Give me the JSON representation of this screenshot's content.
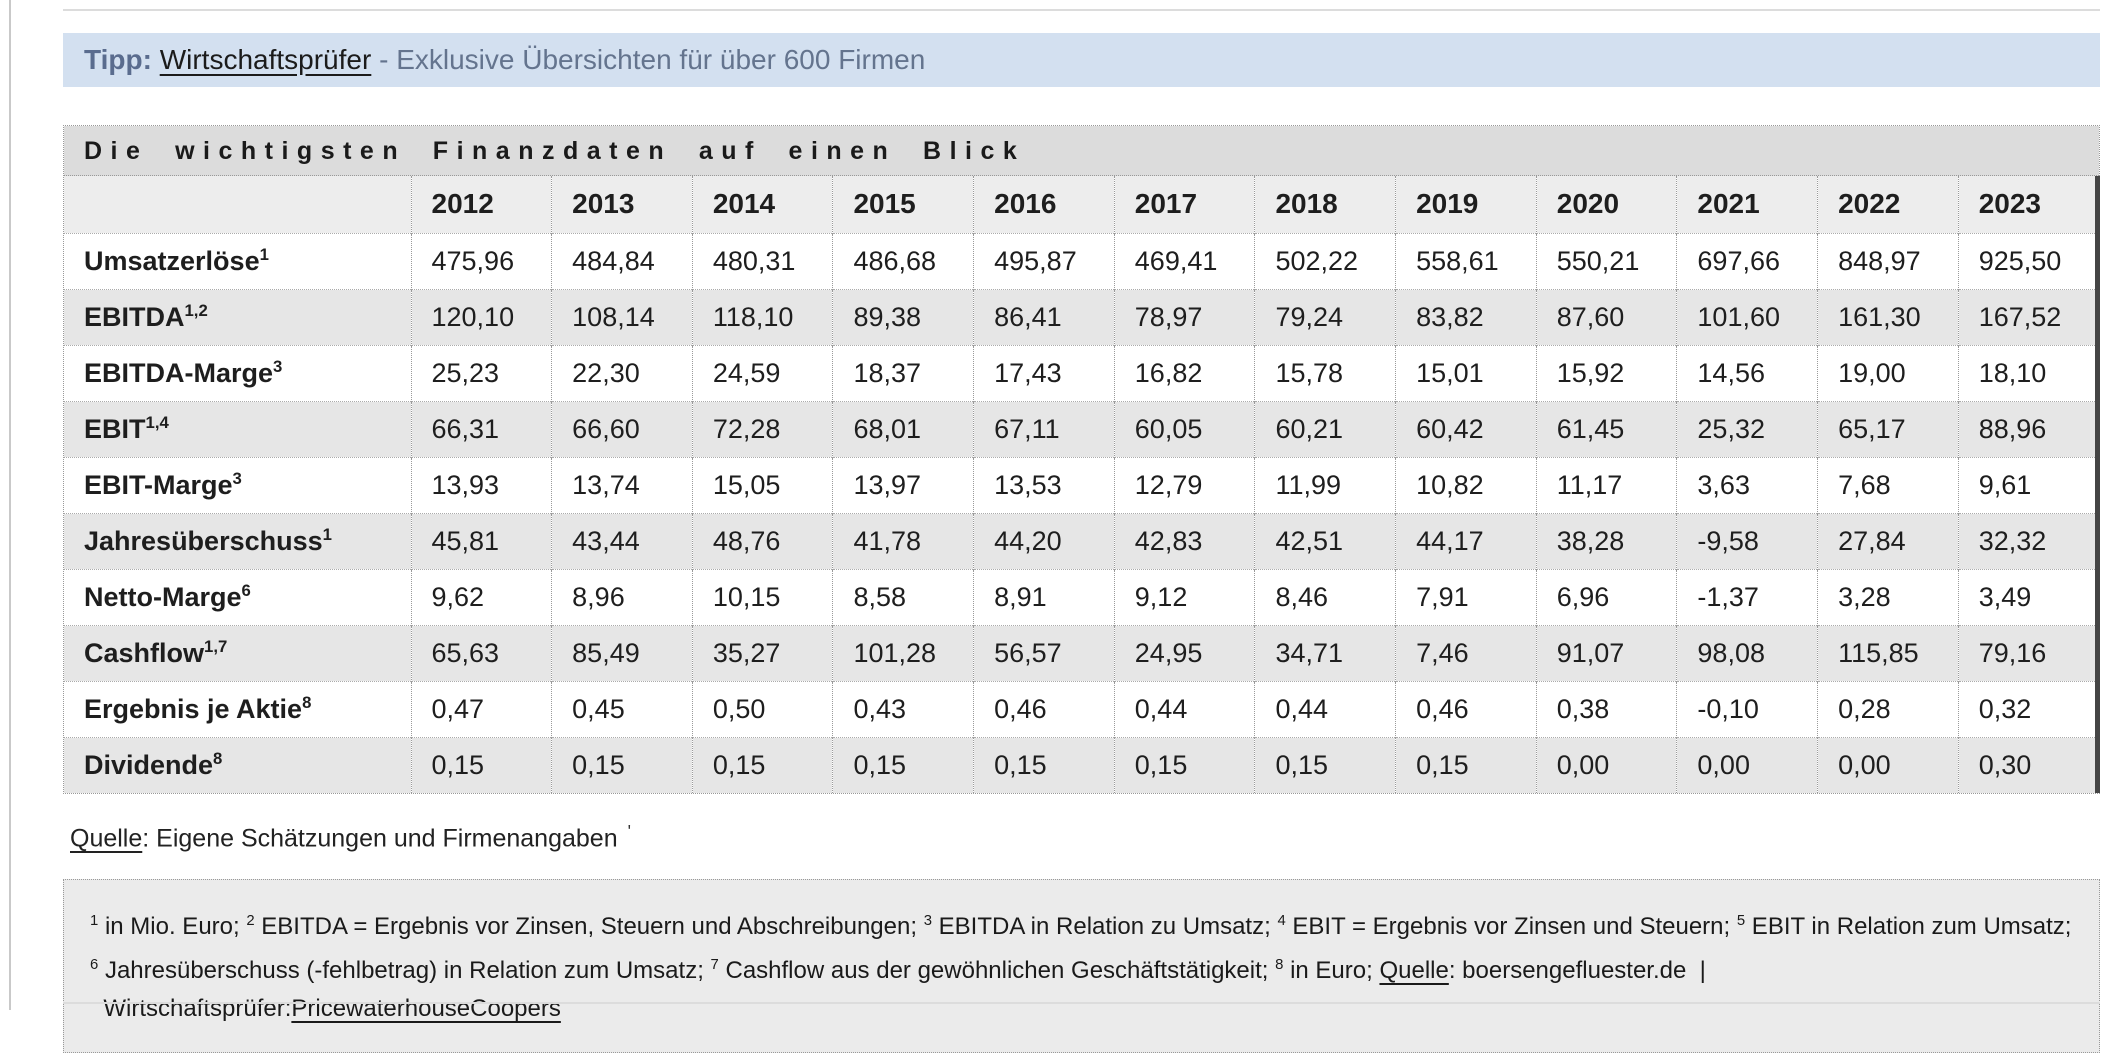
{
  "tip_banner": {
    "label": "Tipp:",
    "link_text": "Wirtschaftsprüfer",
    "suffix": " - Exklusive Übersichten für über 600 Firmen"
  },
  "finanz_table": {
    "title": "Die wichtigsten Finanzdaten auf einen Blick",
    "years": [
      "2012",
      "2013",
      "2014",
      "2015",
      "2016",
      "2017",
      "2018",
      "2019",
      "2020",
      "2021",
      "2022",
      "2023"
    ],
    "rows": [
      {
        "label": "Umsatzerlöse",
        "sup": "1",
        "values": [
          "475,96",
          "484,84",
          "480,31",
          "486,68",
          "495,87",
          "469,41",
          "502,22",
          "558,61",
          "550,21",
          "697,66",
          "848,97",
          "925,50"
        ]
      },
      {
        "label": "EBITDA",
        "sup": "1,2",
        "values": [
          "120,10",
          "108,14",
          "118,10",
          "89,38",
          "86,41",
          "78,97",
          "79,24",
          "83,82",
          "87,60",
          "101,60",
          "161,30",
          "167,52"
        ]
      },
      {
        "label": "EBITDA-Marge",
        "sup": "3",
        "values": [
          "25,23",
          "22,30",
          "24,59",
          "18,37",
          "17,43",
          "16,82",
          "15,78",
          "15,01",
          "15,92",
          "14,56",
          "19,00",
          "18,10"
        ]
      },
      {
        "label": "EBIT",
        "sup": "1,4",
        "values": [
          "66,31",
          "66,60",
          "72,28",
          "68,01",
          "67,11",
          "60,05",
          "60,21",
          "60,42",
          "61,45",
          "25,32",
          "65,17",
          "88,96"
        ]
      },
      {
        "label": "EBIT-Marge",
        "sup": "3",
        "values": [
          "13,93",
          "13,74",
          "15,05",
          "13,97",
          "13,53",
          "12,79",
          "11,99",
          "10,82",
          "11,17",
          "3,63",
          "7,68",
          "9,61"
        ]
      },
      {
        "label": "Jahresüberschuss",
        "sup": "1",
        "values": [
          "45,81",
          "43,44",
          "48,76",
          "41,78",
          "44,20",
          "42,83",
          "42,51",
          "44,17",
          "38,28",
          "-9,58",
          "27,84",
          "32,32"
        ]
      },
      {
        "label": "Netto-Marge",
        "sup": "6",
        "values": [
          "9,62",
          "8,96",
          "10,15",
          "8,58",
          "8,91",
          "9,12",
          "8,46",
          "7,91",
          "6,96",
          "-1,37",
          "3,28",
          "3,49"
        ]
      },
      {
        "label": "Cashflow",
        "sup": "1,7",
        "values": [
          "65,63",
          "85,49",
          "35,27",
          "101,28",
          "56,57",
          "24,95",
          "34,71",
          "7,46",
          "91,07",
          "98,08",
          "115,85",
          "79,16"
        ]
      },
      {
        "label": "Ergebnis je Aktie",
        "sup": "8",
        "values": [
          "0,47",
          "0,45",
          "0,50",
          "0,43",
          "0,46",
          "0,44",
          "0,44",
          "0,46",
          "0,38",
          "-0,10",
          "0,28",
          "0,32"
        ]
      },
      {
        "label": "Dividende",
        "sup": "8",
        "values": [
          "0,15",
          "0,15",
          "0,15",
          "0,15",
          "0,15",
          "0,15",
          "0,15",
          "0,15",
          "0,00",
          "0,00",
          "0,00",
          "0,30"
        ]
      }
    ]
  },
  "source_line": {
    "label": "Quelle",
    "text": ": Eigene Schätzungen und Firmenangaben",
    "mark": "'"
  },
  "footnotes": {
    "segments": [
      {
        "t": "sup",
        "v": "1"
      },
      {
        "t": "text",
        "v": " in Mio. Euro; "
      },
      {
        "t": "sup",
        "v": "2"
      },
      {
        "t": "text",
        "v": " EBITDA = Ergebnis vor Zinsen, Steuern und Abschreibungen; "
      },
      {
        "t": "sup",
        "v": "3"
      },
      {
        "t": "text",
        "v": " EBITDA in Relation zu Umsatz; "
      },
      {
        "t": "sup",
        "v": "4"
      },
      {
        "t": "text",
        "v": " EBIT = Ergebnis vor Zinsen und Steuern; "
      },
      {
        "t": "sup",
        "v": "5"
      },
      {
        "t": "text",
        "v": " EBIT in Relation zum Umsatz; "
      },
      {
        "t": "sup",
        "v": "6"
      },
      {
        "t": "text",
        "v": " Jahresüberschuss (-fehlbetrag) in Relation zum Umsatz; "
      },
      {
        "t": "sup",
        "v": "7"
      },
      {
        "t": "text",
        "v": " Cashflow aus der gewöhnlichen Geschäftstätigkeit; "
      },
      {
        "t": "sup",
        "v": "8"
      },
      {
        "t": "text",
        "v": " in Euro; "
      },
      {
        "t": "uline",
        "v": "Quelle"
      },
      {
        "t": "text",
        "v": ": boersengefluester.de"
      },
      {
        "t": "text",
        "v": "  |  Wirtschaftsprüfer:"
      },
      {
        "t": "link",
        "v": "PricewaterhouseCoopers"
      }
    ]
  },
  "colors": {
    "tip_background": "#d3e0f0",
    "tip_text": "#64748e",
    "title_bar_background": "#dcdcdc",
    "header_row_background": "#ededed",
    "alt_row_background": "#e6e6e6",
    "scrollbar": "#454545"
  }
}
